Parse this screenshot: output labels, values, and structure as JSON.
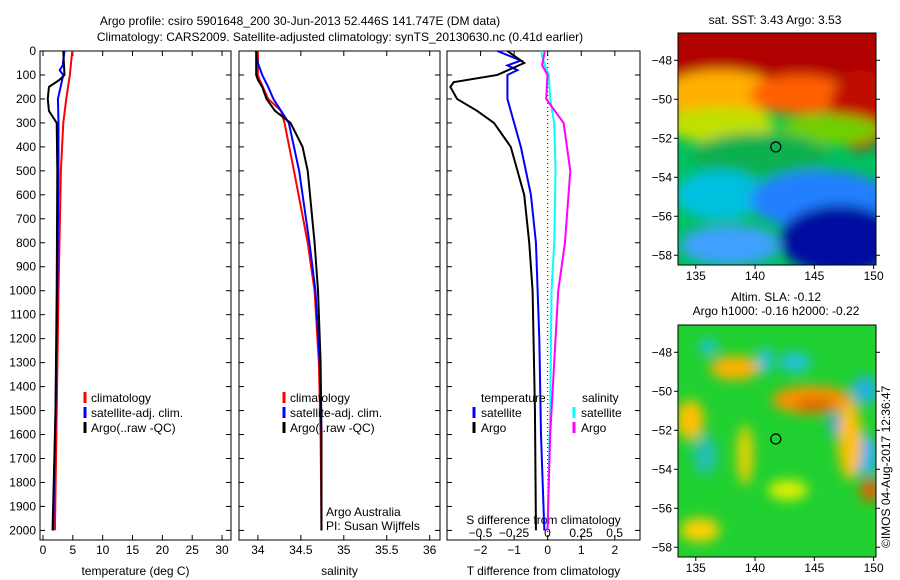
{
  "chart_data": [
    {
      "type": "line",
      "name": "temperature-profile",
      "title_line1": "Argo profile: csiro 5901648_200 30-Jun-2013 52.446S 141.747E (DM data)",
      "title_line2": "Climatology: CARS2009. Satellite-adjusted climatology: synTS_20130630.nc (0.41d earlier)",
      "xlabel": "temperature (deg C)",
      "xlim": [
        -0.5,
        31.5
      ],
      "ylim": [
        0,
        2040
      ],
      "y_reversed": true,
      "xticks": [
        0,
        5,
        10,
        15,
        20,
        25,
        30
      ],
      "yticks": [
        0,
        100,
        200,
        300,
        400,
        500,
        600,
        700,
        800,
        900,
        1000,
        1100,
        1200,
        1300,
        1400,
        1500,
        1600,
        1700,
        1800,
        1900,
        2000
      ],
      "legend": [
        "climatology",
        "satellite-adj. clim.",
        "Argo(..raw -QC)"
      ],
      "series": [
        {
          "name": "climatology",
          "color": "#ff0000",
          "depth": [
            0,
            100,
            200,
            300,
            500,
            1000,
            1500,
            2000
          ],
          "values": [
            4.9,
            4.5,
            3.9,
            3.4,
            3.0,
            2.6,
            2.3,
            2.0
          ]
        },
        {
          "name": "satellite-adj. clim.",
          "color": "#0000ff",
          "depth": [
            0,
            60,
            80,
            100,
            200,
            300,
            500,
            1000,
            1500,
            2000
          ],
          "values": [
            3.6,
            3.3,
            2.8,
            3.4,
            2.5,
            2.6,
            2.6,
            2.4,
            2.1,
            1.7
          ]
        },
        {
          "name": "Argo(..raw -QC)",
          "color": "#000000",
          "depth": [
            0,
            100,
            120,
            150,
            200,
            250,
            300,
            500,
            1000,
            1500,
            2000
          ],
          "values": [
            3.4,
            3.6,
            2.8,
            1.0,
            0.8,
            1.0,
            2.3,
            2.4,
            2.3,
            2.1,
            1.6
          ]
        }
      ]
    },
    {
      "type": "line",
      "name": "salinity-profile",
      "xlabel": "salinity",
      "xlim": [
        33.78,
        36.12
      ],
      "ylim": [
        0,
        2040
      ],
      "y_reversed": true,
      "xticks": [
        34,
        34.5,
        35,
        35.5,
        36
      ],
      "legend": [
        "climatology",
        "satellite-adj. clim.",
        "Argo(..raw -QC)"
      ],
      "annotation": [
        "Argo Australia",
        "PI: Susan Wijffels"
      ],
      "series": [
        {
          "name": "climatology",
          "color": "#ff0000",
          "depth": [
            0,
            100,
            120,
            200,
            250,
            300,
            500,
            800,
            1000,
            1300,
            1600,
            2000
          ],
          "values": [
            34.0,
            34.0,
            34.02,
            34.12,
            34.27,
            34.31,
            34.42,
            34.58,
            34.66,
            34.71,
            34.73,
            34.74
          ]
        },
        {
          "name": "satellite-adj. clim.",
          "color": "#0000ff",
          "depth": [
            0,
            50,
            100,
            150,
            200,
            250,
            300,
            500,
            800,
            1000,
            1300,
            1600,
            2000
          ],
          "values": [
            33.98,
            34.0,
            34.05,
            34.12,
            34.18,
            34.27,
            34.36,
            34.48,
            34.6,
            34.67,
            34.72,
            34.74,
            34.74
          ]
        },
        {
          "name": "Argo(..raw -QC)",
          "color": "#000000",
          "depth": [
            0,
            100,
            120,
            150,
            200,
            250,
            300,
            400,
            500,
            800,
            1000,
            1300,
            1600,
            2000
          ],
          "values": [
            33.98,
            33.98,
            34.0,
            34.05,
            34.1,
            34.2,
            34.38,
            34.52,
            34.58,
            34.66,
            34.7,
            34.73,
            34.74,
            34.74
          ]
        }
      ]
    },
    {
      "type": "line",
      "name": "difference-profile",
      "xlabel": "T difference from climatology",
      "x2label": "S difference from climatology",
      "xlim": [
        -3,
        2.75
      ],
      "x2lim": [
        -0.75,
        0.69
      ],
      "ylim": [
        0,
        2040
      ],
      "y_reversed": true,
      "xticks": [
        -2,
        -1,
        0,
        1,
        2
      ],
      "x2ticks": [
        -0.5,
        -0.25,
        0,
        0.25,
        0.5
      ],
      "legend_titles": [
        "temperature",
        "salinity"
      ],
      "legend": [
        "satellite",
        "Argo",
        "satellite",
        "Argo"
      ],
      "series": [
        {
          "name": "T satellite",
          "color": "#0000ff",
          "axis": "T",
          "depth": [
            0,
            40,
            60,
            80,
            100,
            200,
            300,
            400,
            600,
            800,
            1200,
            1600,
            2000
          ],
          "values": [
            -1.5,
            -0.8,
            -1.2,
            -0.9,
            -1.2,
            -1.2,
            -1.0,
            -0.8,
            -0.5,
            -0.35,
            -0.25,
            -0.2,
            -0.1
          ]
        },
        {
          "name": "T Argo",
          "color": "#000000",
          "axis": "T",
          "depth": [
            0,
            50,
            100,
            130,
            150,
            200,
            250,
            300,
            400,
            500,
            600,
            800,
            1000,
            1500,
            2000
          ],
          "values": [
            -1.2,
            -0.7,
            -1.5,
            -2.8,
            -2.9,
            -2.7,
            -2.1,
            -1.6,
            -1.1,
            -0.9,
            -0.7,
            -0.55,
            -0.45,
            -0.38,
            -0.35
          ]
        },
        {
          "name": "S satellite",
          "color": "#00ffff",
          "axis": "S",
          "depth": [
            0,
            60,
            100,
            200,
            300,
            500,
            800,
            1000,
            1500,
            2000
          ],
          "values": [
            -0.05,
            -0.02,
            0.01,
            0.02,
            0.05,
            0.06,
            0.05,
            0.03,
            0.02,
            0.0
          ]
        },
        {
          "name": "S Argo",
          "color": "#ff00ff",
          "axis": "S",
          "depth": [
            0,
            60,
            100,
            200,
            300,
            500,
            800,
            1000,
            1300,
            1600,
            2000
          ],
          "values": [
            -0.02,
            -0.04,
            0.0,
            -0.01,
            0.12,
            0.17,
            0.13,
            0.08,
            0.05,
            0.02,
            0.0
          ]
        }
      ]
    },
    {
      "type": "heatmap",
      "name": "sst-map",
      "title": "sat. SST: 3.43 Argo: 3.53",
      "xlim": [
        133.5,
        150.2
      ],
      "ylim": [
        -58.5,
        -46.6
      ],
      "xticks": [
        135,
        140,
        145,
        150
      ],
      "yticks": [
        -48,
        -50,
        -52,
        -54,
        -56,
        -58
      ],
      "marker": {
        "lon": 141.747,
        "lat": -52.446
      }
    },
    {
      "type": "heatmap",
      "name": "sla-map",
      "title_line1": "Altim. SLA: -0.12",
      "title_line2": "Argo h1000: -0.16 h2000: -0.22",
      "xlim": [
        133.5,
        150.2
      ],
      "ylim": [
        -58.5,
        -46.6
      ],
      "xticks": [
        135,
        140,
        145,
        150
      ],
      "yticks": [
        -48,
        -50,
        -52,
        -54,
        -56,
        -58
      ],
      "marker": {
        "lon": 141.747,
        "lat": -52.446
      },
      "credit": "©IMOS 04-Aug-2017 12:36:47"
    }
  ]
}
